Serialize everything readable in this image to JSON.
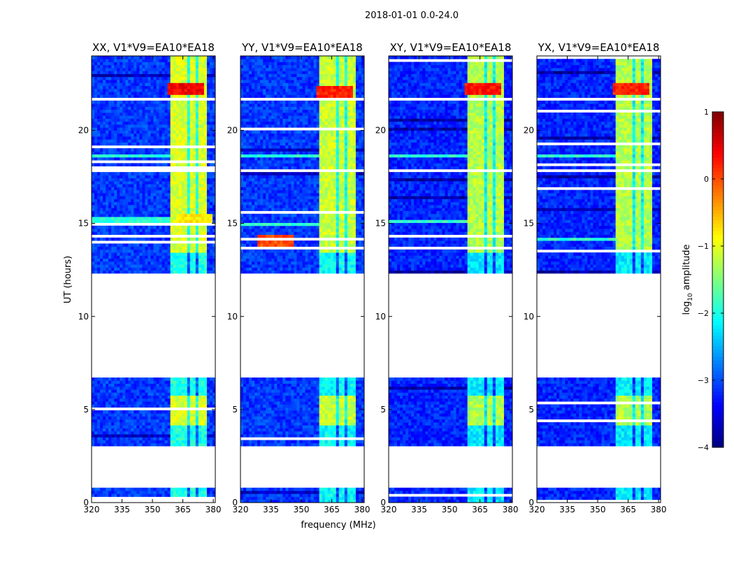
{
  "figure": {
    "suptitle": "2018-01-01 0.0-24.0",
    "xlabel": "frequency (MHz)",
    "ylabel": "UT (hours)"
  },
  "colorbar": {
    "label_main": "log",
    "label_sub": "10",
    "label_rest": " amplitude",
    "range": [
      -4,
      1
    ],
    "ticks": [
      -4,
      -3,
      -2,
      -1,
      0,
      1
    ],
    "tick_labels": [
      "−4",
      "−3",
      "−2",
      "−1",
      "0",
      "1"
    ],
    "colormap": "jet",
    "colors": [
      "#00007f",
      "#0000ff",
      "#007fff",
      "#00ffff",
      "#7fff7f",
      "#ffff00",
      "#ff7f00",
      "#ff0000",
      "#7f0000"
    ]
  },
  "chart_data": [
    {
      "type": "heatmap",
      "title": "XX, V1*V9=EA10*EA18",
      "x_range": [
        320,
        381
      ],
      "y_range": [
        0,
        24
      ],
      "x_ticks": [
        320,
        335,
        350,
        365,
        380
      ],
      "y_ticks": [
        0,
        5,
        10,
        15,
        20
      ],
      "background_level": -3.1,
      "bright_band_mhz": [
        359,
        377
      ],
      "bright_band_level": -1.3,
      "hot_spots": [
        {
          "x": 366,
          "y": 22.2,
          "level": 0.4
        },
        {
          "x": 370,
          "y": 15.2,
          "level": -0.8
        }
      ],
      "blank_hours": [
        [
          0.85,
          3.05
        ],
        [
          6.75,
          12.3
        ],
        [
          21.55,
          21.7
        ],
        [
          17.75,
          17.95
        ]
      ],
      "rfi_rows_hours": [
        18.6,
        14.05,
        15.2
      ]
    },
    {
      "type": "heatmap",
      "title": "YY, V1*V9=EA10*EA18",
      "x_range": [
        320,
        381
      ],
      "y_range": [
        0,
        24
      ],
      "x_ticks": [
        320,
        335,
        350,
        365,
        380
      ],
      "y_ticks": [
        0,
        5,
        10,
        15,
        20
      ],
      "background_level": -3.1,
      "bright_band_mhz": [
        359,
        377
      ],
      "bright_band_level": -1.4,
      "hot_spots": [
        {
          "x": 366,
          "y": 22.1,
          "level": 0.2
        },
        {
          "x": 338,
          "y": 14.1,
          "level": 0.0
        }
      ],
      "blank_hours": [
        [
          0.85,
          3.05
        ],
        [
          6.75,
          12.3
        ],
        [
          21.55,
          21.7
        ],
        [
          17.75,
          17.95
        ]
      ],
      "rfi_rows_hours": [
        18.6,
        14.1,
        15.0
      ]
    },
    {
      "type": "heatmap",
      "title": "XY, V1*V9=EA10*EA18",
      "x_range": [
        320,
        381
      ],
      "y_range": [
        0,
        24
      ],
      "x_ticks": [
        320,
        335,
        350,
        365,
        380
      ],
      "y_ticks": [
        0,
        5,
        10,
        15,
        20
      ],
      "background_level": -3.2,
      "bright_band_mhz": [
        359,
        377
      ],
      "bright_band_level": -1.5,
      "hot_spots": [
        {
          "x": 366,
          "y": 22.2,
          "level": 0.3
        }
      ],
      "blank_hours": [
        [
          0.85,
          3.05
        ],
        [
          6.75,
          12.3
        ],
        [
          21.55,
          21.7
        ],
        [
          17.75,
          17.95
        ]
      ],
      "rfi_rows_hours": [
        18.6,
        15.1
      ]
    },
    {
      "type": "heatmap",
      "title": "YX, V1*V9=EA10*EA18",
      "x_range": [
        320,
        381
      ],
      "y_range": [
        0,
        24
      ],
      "x_ticks": [
        320,
        335,
        350,
        365,
        380
      ],
      "y_ticks": [
        0,
        5,
        10,
        15,
        20
      ],
      "background_level": -3.2,
      "bright_band_mhz": [
        359,
        377
      ],
      "bright_band_level": -1.5,
      "hot_spots": [
        {
          "x": 366,
          "y": 22.2,
          "level": 0.2
        }
      ],
      "blank_hours": [
        [
          0.85,
          3.05
        ],
        [
          6.75,
          12.3
        ],
        [
          21.55,
          21.7
        ],
        [
          17.75,
          17.95
        ]
      ],
      "rfi_rows_hours": [
        18.6,
        14.1
      ]
    }
  ]
}
